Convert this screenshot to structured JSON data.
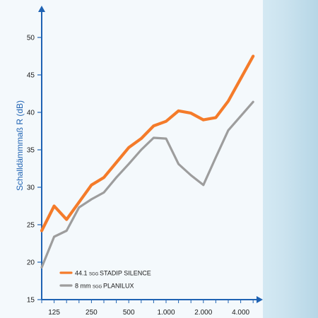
{
  "chart_data": {
    "type": "line",
    "ylabel": "Schalldämmmaß R (dB)",
    "xlabel": "",
    "ylim": [
      15,
      55
    ],
    "y_ticks": [
      15,
      20,
      25,
      30,
      35,
      40,
      45,
      50
    ],
    "x_tick_labels": [
      "125",
      "250",
      "500",
      "1.000",
      "2.000",
      "4.000"
    ],
    "x": [
      100,
      125,
      160,
      200,
      250,
      315,
      400,
      500,
      630,
      800,
      1000,
      1250,
      1600,
      2000,
      2500,
      3150,
      4000,
      5000
    ],
    "series": [
      {
        "name": "44.1 SGG STADIP SILENCE",
        "name_parts": {
          "prefix": "44.1",
          "brand": "SGG",
          "product": "STADIP SILENCE"
        },
        "color": "#f47b2a",
        "values": [
          24.2,
          27.5,
          25.7,
          28.0,
          30.3,
          31.3,
          33.3,
          35.3,
          36.5,
          38.2,
          38.8,
          40.2,
          39.9,
          39.0,
          39.3,
          41.5,
          44.5,
          47.5
        ]
      },
      {
        "name": "8 mm SGG PLANILUX",
        "name_parts": {
          "prefix": "8 mm",
          "brand": "SGG",
          "product": "PLANILUX"
        },
        "color": "#9d9d9d",
        "values": [
          19.3,
          23.4,
          24.2,
          27.3,
          28.4,
          29.3,
          31.3,
          33.1,
          35.0,
          36.6,
          36.5,
          33.1,
          31.6,
          30.3,
          34.0,
          37.6,
          39.5,
          41.4
        ]
      }
    ],
    "legend_position": "bottom-left",
    "grid": false,
    "axis_color": "#1f63b3"
  }
}
